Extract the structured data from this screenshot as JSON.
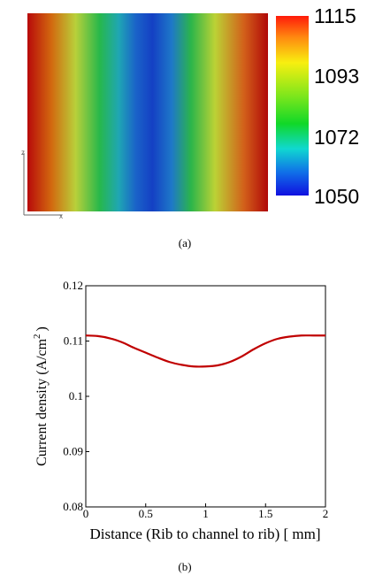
{
  "panel_a": {
    "caption": "(a)",
    "axis_letters": {
      "vertical": "z",
      "horizontal": "x"
    },
    "colorbar": {
      "ticks": [
        "1115",
        "1093",
        "1072",
        "1050"
      ],
      "min": 1050,
      "max": 1115
    },
    "field_stops": [
      {
        "x": 0.0,
        "color": "#b80a0a"
      },
      {
        "x": 0.1,
        "color": "#d2690f"
      },
      {
        "x": 0.2,
        "color": "#b9d03a"
      },
      {
        "x": 0.3,
        "color": "#27b84b"
      },
      {
        "x": 0.38,
        "color": "#1fa6b4"
      },
      {
        "x": 0.45,
        "color": "#1a63c8"
      },
      {
        "x": 0.52,
        "color": "#1440c4"
      },
      {
        "x": 0.6,
        "color": "#1e78c8"
      },
      {
        "x": 0.68,
        "color": "#2bb54a"
      },
      {
        "x": 0.78,
        "color": "#bcd235"
      },
      {
        "x": 0.9,
        "color": "#d2601a"
      },
      {
        "x": 1.0,
        "color": "#b00808"
      }
    ],
    "colorbar_stops": [
      {
        "t": 0.0,
        "color": "#ff1a0a"
      },
      {
        "t": 0.12,
        "color": "#ff8a10"
      },
      {
        "t": 0.26,
        "color": "#f8ef10"
      },
      {
        "t": 0.45,
        "color": "#7ae61c"
      },
      {
        "t": 0.6,
        "color": "#10d828"
      },
      {
        "t": 0.74,
        "color": "#10d8d0"
      },
      {
        "t": 0.87,
        "color": "#1070e8"
      },
      {
        "t": 1.0,
        "color": "#1010e0"
      }
    ]
  },
  "panel_b": {
    "caption": "(b)"
  },
  "chart_data": {
    "type": "line",
    "xlabel": "Distance (Rib to channel to rib) [ mm]",
    "ylabel_main": "Current density (A/cm",
    "ylabel_sup": "2",
    "ylabel_close": ")",
    "xlim": [
      0,
      2
    ],
    "ylim": [
      0.08,
      0.12
    ],
    "xticks": [
      0,
      0.5,
      1,
      1.5,
      2
    ],
    "xtick_labels": [
      "0",
      "0.5",
      "1",
      "1.5",
      "2"
    ],
    "yticks": [
      0.08,
      0.09,
      0.1,
      0.11,
      0.12
    ],
    "ytick_labels": [
      "0.08",
      "0.09",
      "0.1",
      "0.11",
      "0.12"
    ],
    "grid": false,
    "series": [
      {
        "color": "#c00000",
        "x": [
          0,
          0.1,
          0.2,
          0.3,
          0.4,
          0.5,
          0.6,
          0.7,
          0.8,
          0.9,
          1.0,
          1.1,
          1.2,
          1.3,
          1.4,
          1.5,
          1.6,
          1.7,
          1.8,
          1.9,
          2.0
        ],
        "y": [
          0.111,
          0.1109,
          0.1105,
          0.1098,
          0.1088,
          0.1079,
          0.107,
          0.1062,
          0.1057,
          0.1054,
          0.1054,
          0.1056,
          0.1062,
          0.1072,
          0.1085,
          0.1096,
          0.1104,
          0.1108,
          0.111,
          0.111,
          0.111
        ]
      }
    ]
  }
}
